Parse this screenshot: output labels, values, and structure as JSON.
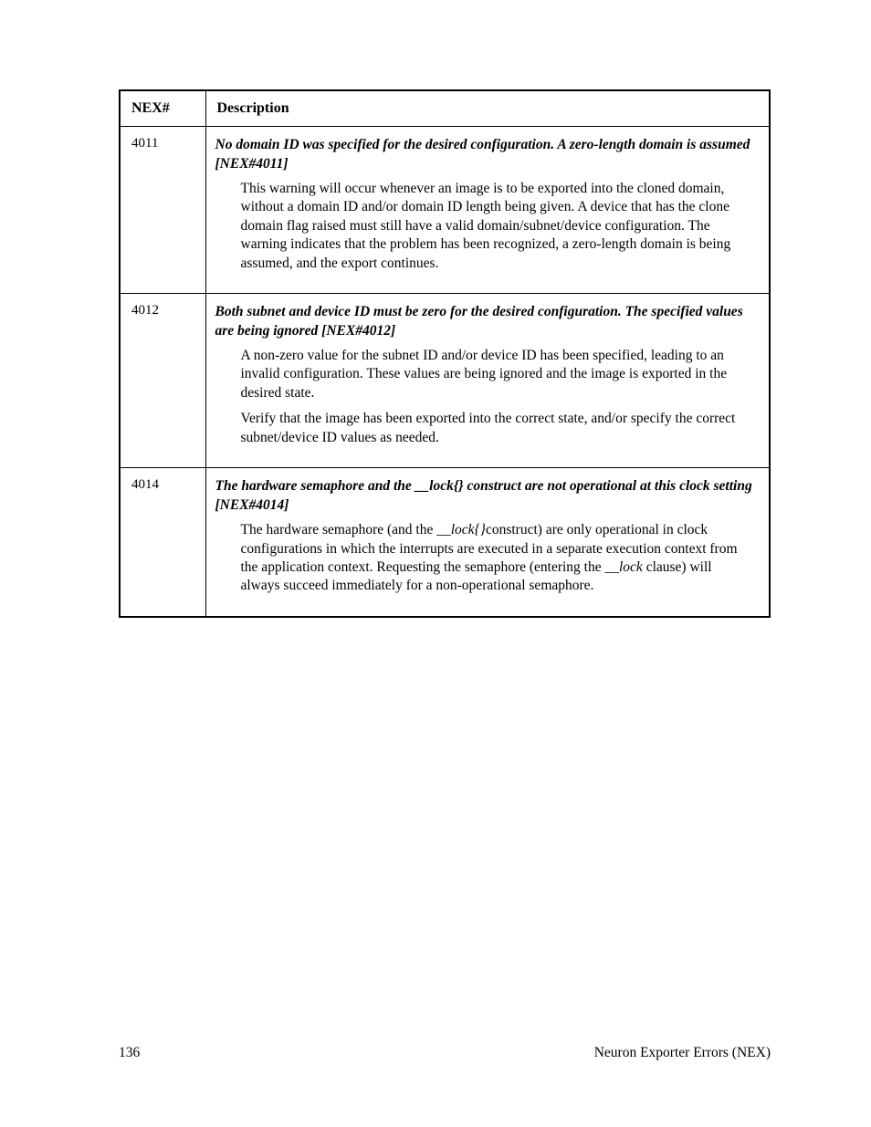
{
  "table": {
    "headers": {
      "col1": "NEX#",
      "col2": "Description"
    },
    "rows": [
      {
        "code": "4011",
        "title": "No domain ID was specified for the desired configuration.  A zero-length domain is assumed [NEX#4011]",
        "paras": [
          "This warning will occur whenever an image is to be exported into the cloned domain, without a domain ID and/or domain ID length being given. A device that has the clone domain flag raised must still have a valid domain/subnet/device configuration.  The warning indicates that the problem has been recognized, a zero-length domain is being assumed, and the export continues."
        ]
      },
      {
        "code": "4012",
        "title": "Both subnet and device ID must be zero for the desired configuration.  The specified values are being ignored [NEX#4012]",
        "paras": [
          "A non-zero value for the subnet ID and/or device ID has been specified, leading to an invalid configuration.  These values are being ignored and the image is exported in the desired state.",
          "Verify that the image has been exported into the correct state, and/or specify the correct subnet/device ID values as needed."
        ]
      },
      {
        "code": "4014",
        "title": "The hardware semaphore and the __lock{} construct are not operational at this clock setting [NEX#4014]",
        "special": true
      }
    ]
  },
  "row3": {
    "p_pre1": "The hardware semaphore (and the ",
    "p_lock1": "__lock{}",
    "p_post1": "construct) are only operational in clock configurations in which the interrupts are executed in a separate execution context from the application context.  Requesting the semaphore (entering the ",
    "p_lock2": "__lock",
    "p_post2": " clause) will always succeed immediately for a non-operational semaphore."
  },
  "footer": {
    "page": "136",
    "section": "Neuron Exporter Errors (NEX)"
  }
}
